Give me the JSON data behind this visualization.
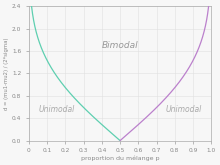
{
  "title": "",
  "xlabel": "proportion du mélange p",
  "ylabel": "d = (mu1-mu2) / (2*sigma)",
  "ylim": [
    0.0,
    2.4
  ],
  "xlim": [
    0.0,
    1.0
  ],
  "xticks": [
    0.0,
    0.1,
    0.2,
    0.3,
    0.4,
    0.5,
    0.6,
    0.7,
    0.8,
    0.9,
    1.0
  ],
  "yticks": [
    0.0,
    0.4,
    0.8,
    1.2,
    1.6,
    2.0,
    2.4
  ],
  "color_left": "#5ecfb0",
  "color_right": "#bb80cc",
  "label_bimodal": "Bimodal",
  "label_unimodal_left": "Unimodal",
  "label_unimodal_right": "Unimodal",
  "background_color": "#f7f7f7",
  "grid_color": "#e0e0e0"
}
